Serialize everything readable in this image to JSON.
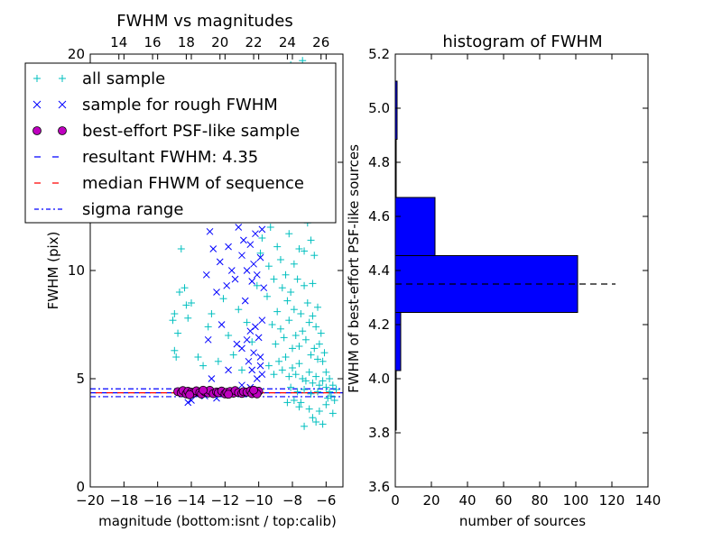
{
  "chart_data": [
    {
      "type": "scatter",
      "title": "FWHM vs magnitudes",
      "xlabel": "magnitude (bottom:isnt / top:calib)",
      "ylabel": "FWHM (pix)",
      "xlim": [
        -20,
        -5
      ],
      "ylim": [
        0,
        20
      ],
      "xticks": [
        -20,
        -18,
        -16,
        -14,
        -12,
        -10,
        -8,
        -6
      ],
      "xtick_labels": [
        "−20",
        "−18",
        "−16",
        "−14",
        "−12",
        "−10",
        "−8",
        "−6"
      ],
      "yticks": [
        0,
        5,
        10,
        15,
        20
      ],
      "ytick_labels": [
        "0",
        "5",
        "10",
        "15",
        "20"
      ],
      "top_axis": {
        "ticks": [
          -20.3,
          -18.3,
          -16.3,
          -14.3,
          -12.3,
          -10.3,
          -8.3,
          -6.3
        ],
        "labels": [
          "14",
          "16",
          "18",
          "20",
          "22",
          "24",
          "26"
        ],
        "label_positions": [
          -18.3,
          -16.3,
          -14.3,
          -12.3,
          -10.3,
          -8.3,
          -6.3
        ]
      },
      "legend_position": "top-left",
      "legend": [
        {
          "label": "all sample",
          "marker": "+",
          "color": "#00bfbf"
        },
        {
          "label": "sample for rough FWHM",
          "marker": "x",
          "color": "#0000ff"
        },
        {
          "label": "best-effort PSF-like sample",
          "marker": "o",
          "color": "#bf00bf"
        },
        {
          "label": "resultant FWHM: 4.35",
          "marker": "dashed",
          "color": "#0000ff"
        },
        {
          "label": "median FHWM of sequence",
          "marker": "dashed",
          "color": "#ff0000"
        },
        {
          "label": "sigma range",
          "marker": "dashdot",
          "color": "#0000ff"
        }
      ],
      "series": [
        {
          "name": "all sample",
          "marker": "+",
          "color": "#00bfbf",
          "points": [
            [
              -15.0,
              8.0
            ],
            [
              -15.1,
              7.7
            ],
            [
              -15.0,
              6.3
            ],
            [
              -14.9,
              6.0
            ],
            [
              -14.8,
              7.1
            ],
            [
              -14.7,
              9.0
            ],
            [
              -14.6,
              11.0
            ],
            [
              -14.4,
              9.2
            ],
            [
              -14.3,
              8.4
            ],
            [
              -14.2,
              7.8
            ],
            [
              -14.0,
              8.5
            ],
            [
              -13.6,
              6.0
            ],
            [
              -13.3,
              5.6
            ],
            [
              -13.0,
              7.4
            ],
            [
              -12.8,
              8.0
            ],
            [
              -12.4,
              5.8
            ],
            [
              -12.1,
              8.7
            ],
            [
              -11.8,
              7.0
            ],
            [
              -11.5,
              6.1
            ],
            [
              -11.2,
              8.2
            ],
            [
              -11.0,
              5.4
            ],
            [
              -10.7,
              7.6
            ],
            [
              -10.4,
              6.7
            ],
            [
              -10.1,
              9.3
            ],
            [
              -9.9,
              10.8
            ],
            [
              -9.8,
              11.5
            ],
            [
              -9.7,
              12.6
            ],
            [
              -9.6,
              13.5
            ],
            [
              -9.5,
              14.8
            ],
            [
              -9.4,
              10.2
            ],
            [
              -9.3,
              12.0
            ],
            [
              -9.2,
              15.5
            ],
            [
              -9.1,
              9.6
            ],
            [
              -9.0,
              13.2
            ],
            [
              -8.9,
              11.1
            ],
            [
              -8.8,
              16.4
            ],
            [
              -8.7,
              10.5
            ],
            [
              -8.6,
              12.9
            ],
            [
              -8.5,
              17.8
            ],
            [
              -8.4,
              9.8
            ],
            [
              -8.3,
              14.1
            ],
            [
              -8.2,
              11.7
            ],
            [
              -8.1,
              19.5
            ],
            [
              -8.0,
              13.0
            ],
            [
              -7.9,
              10.3
            ],
            [
              -7.8,
              15.9
            ],
            [
              -7.7,
              12.4
            ],
            [
              -7.6,
              11.0
            ],
            [
              -7.5,
              14.6
            ],
            [
              -7.4,
              19.7
            ],
            [
              -7.3,
              10.9
            ],
            [
              -7.2,
              13.8
            ],
            [
              -7.1,
              12.2
            ],
            [
              -7.0,
              16.8
            ],
            [
              -6.9,
              11.4
            ],
            [
              -6.8,
              9.4
            ],
            [
              -6.7,
              10.7
            ],
            [
              -6.5,
              8.3
            ],
            [
              -6.3,
              7.1
            ],
            [
              -6.1,
              6.2
            ],
            [
              -9.5,
              8.8
            ],
            [
              -9.2,
              7.5
            ],
            [
              -9.0,
              6.6
            ],
            [
              -8.9,
              8.1
            ],
            [
              -8.7,
              7.3
            ],
            [
              -8.6,
              9.2
            ],
            [
              -8.5,
              6.9
            ],
            [
              -8.3,
              8.6
            ],
            [
              -8.2,
              7.7
            ],
            [
              -8.1,
              9.0
            ],
            [
              -8.0,
              6.4
            ],
            [
              -7.9,
              8.2
            ],
            [
              -7.8,
              7.0
            ],
            [
              -7.7,
              9.6
            ],
            [
              -7.6,
              6.5
            ],
            [
              -7.5,
              8.0
            ],
            [
              -7.4,
              7.2
            ],
            [
              -7.3,
              9.3
            ],
            [
              -7.2,
              6.8
            ],
            [
              -7.1,
              8.5
            ],
            [
              -7.0,
              7.6
            ],
            [
              -6.9,
              6.1
            ],
            [
              -6.8,
              7.9
            ],
            [
              -6.7,
              6.4
            ],
            [
              -6.6,
              7.4
            ],
            [
              -6.5,
              5.9
            ],
            [
              -6.4,
              6.6
            ],
            [
              -6.2,
              5.8
            ],
            [
              -6.0,
              5.3
            ],
            [
              -5.8,
              5.0
            ],
            [
              -9.4,
              5.6
            ],
            [
              -9.1,
              5.2
            ],
            [
              -8.8,
              5.8
            ],
            [
              -8.6,
              5.4
            ],
            [
              -8.4,
              6.0
            ],
            [
              -8.2,
              5.1
            ],
            [
              -8.0,
              5.5
            ],
            [
              -7.8,
              5.2
            ],
            [
              -7.6,
              5.7
            ],
            [
              -7.4,
              5.0
            ],
            [
              -7.2,
              4.9
            ],
            [
              -7.0,
              5.3
            ],
            [
              -6.8,
              4.8
            ],
            [
              -6.6,
              5.1
            ],
            [
              -6.4,
              4.7
            ],
            [
              -6.2,
              4.9
            ],
            [
              -6.0,
              4.6
            ],
            [
              -5.8,
              4.4
            ],
            [
              -5.6,
              4.7
            ],
            [
              -5.4,
              4.5
            ],
            [
              -8.1,
              4.6
            ],
            [
              -7.7,
              4.4
            ],
            [
              -7.3,
              4.5
            ],
            [
              -6.9,
              4.3
            ],
            [
              -6.5,
              4.4
            ],
            [
              -7.5,
              3.9
            ],
            [
              -7.0,
              3.6
            ],
            [
              -6.8,
              3.2
            ],
            [
              -6.4,
              3.5
            ],
            [
              -6.2,
              2.9
            ],
            [
              -7.3,
              2.8
            ],
            [
              -6.0,
              3.8
            ],
            [
              -5.9,
              4.1
            ],
            [
              -5.7,
              4.2
            ],
            [
              -5.5,
              4.0
            ],
            [
              -8.3,
              3.9
            ],
            [
              -7.9,
              4.0
            ],
            [
              -7.6,
              3.7
            ],
            [
              -6.6,
              3.0
            ],
            [
              -5.6,
              3.4
            ]
          ]
        },
        {
          "name": "sample for rough FWHM",
          "marker": "x",
          "color": "#0000ff",
          "points": [
            [
              -13.0,
              13.2
            ],
            [
              -12.9,
              11.8
            ],
            [
              -12.7,
              11.0
            ],
            [
              -13.1,
              9.8
            ],
            [
              -13.0,
              6.8
            ],
            [
              -12.5,
              9.0
            ],
            [
              -12.3,
              10.4
            ],
            [
              -11.9,
              9.3
            ],
            [
              -11.8,
              11.1
            ],
            [
              -11.6,
              10.0
            ],
            [
              -11.4,
              9.6
            ],
            [
              -11.2,
              12.0
            ],
            [
              -11.0,
              10.7
            ],
            [
              -10.9,
              11.4
            ],
            [
              -10.8,
              8.6
            ],
            [
              -10.7,
              10.0
            ],
            [
              -10.6,
              12.8
            ],
            [
              -10.5,
              11.2
            ],
            [
              -10.4,
              9.5
            ],
            [
              -10.3,
              10.3
            ],
            [
              -10.2,
              11.7
            ],
            [
              -10.1,
              9.8
            ],
            [
              -10.0,
              12.4
            ],
            [
              -9.9,
              10.6
            ],
            [
              -9.8,
              11.9
            ],
            [
              -9.7,
              9.2
            ],
            [
              -10.4,
              13.9
            ],
            [
              -10.2,
              14.4
            ],
            [
              -10.0,
              15.3
            ],
            [
              -10.3,
              16.0
            ],
            [
              -10.6,
              13.6
            ],
            [
              -10.1,
              17.2
            ],
            [
              -9.9,
              15.9
            ],
            [
              -10.5,
              18.3
            ],
            [
              -10.4,
              17.0
            ],
            [
              -12.2,
              7.5
            ],
            [
              -11.3,
              6.6
            ],
            [
              -11.0,
              6.4
            ],
            [
              -10.7,
              6.8
            ],
            [
              -10.5,
              7.2
            ],
            [
              -10.3,
              6.2
            ],
            [
              -10.2,
              7.4
            ],
            [
              -10.0,
              6.9
            ],
            [
              -9.9,
              6.0
            ],
            [
              -9.8,
              7.7
            ],
            [
              -10.6,
              5.8
            ],
            [
              -10.4,
              5.4
            ],
            [
              -10.1,
              5.0
            ],
            [
              -9.9,
              5.6
            ],
            [
              -9.8,
              5.2
            ],
            [
              -11.8,
              5.4
            ],
            [
              -12.8,
              5.0
            ],
            [
              -14.2,
              3.9
            ],
            [
              -13.2,
              4.2
            ],
            [
              -12.5,
              4.1
            ],
            [
              -12.0,
              4.3
            ],
            [
              -11.0,
              4.7
            ],
            [
              -10.5,
              4.6
            ],
            [
              -13.8,
              4.3
            ],
            [
              -14.0,
              4.0
            ]
          ]
        },
        {
          "name": "best-effort PSF-like sample",
          "marker": "o",
          "color": "#bf00bf",
          "points": [
            [
              -14.8,
              4.4
            ],
            [
              -14.6,
              4.35
            ],
            [
              -14.5,
              4.45
            ],
            [
              -14.3,
              4.3
            ],
            [
              -14.2,
              4.42
            ],
            [
              -14.0,
              4.38
            ],
            [
              -13.9,
              4.33
            ],
            [
              -13.7,
              4.44
            ],
            [
              -13.5,
              4.36
            ],
            [
              -13.4,
              4.29
            ],
            [
              -13.2,
              4.4
            ],
            [
              -13.0,
              4.34
            ],
            [
              -12.9,
              4.46
            ],
            [
              -12.7,
              4.31
            ],
            [
              -12.5,
              4.39
            ],
            [
              -12.4,
              4.35
            ],
            [
              -12.2,
              4.43
            ],
            [
              -12.0,
              4.3
            ],
            [
              -11.9,
              4.37
            ],
            [
              -11.7,
              4.41
            ],
            [
              -11.5,
              4.33
            ],
            [
              -11.4,
              4.45
            ],
            [
              -11.2,
              4.36
            ],
            [
              -11.0,
              4.32
            ],
            [
              -10.9,
              4.4
            ],
            [
              -10.7,
              4.38
            ],
            [
              -10.5,
              4.44
            ],
            [
              -10.4,
              4.31
            ],
            [
              -10.2,
              4.37
            ],
            [
              -10.0,
              4.42
            ],
            [
              -10.1,
              4.3
            ],
            [
              -10.3,
              4.47
            ],
            [
              -11.8,
              4.28
            ],
            [
              -13.3,
              4.47
            ],
            [
              -14.1,
              4.26
            ]
          ]
        }
      ],
      "hlines": [
        {
          "label": "resultant FWHM: 4.35",
          "y": 4.35,
          "color": "#0000ff",
          "style": "dashed"
        },
        {
          "label": "median FHWM of sequence",
          "y": 4.35,
          "color": "#ff0000",
          "style": "dashed"
        },
        {
          "label": "sigma range",
          "y": 4.17,
          "color": "#0000ff",
          "style": "dashdot"
        },
        {
          "label": "sigma range",
          "y": 4.53,
          "color": "#0000ff",
          "style": "dashdot"
        }
      ]
    },
    {
      "type": "bar",
      "orientation": "horizontal",
      "title": "histogram of FWHM",
      "xlabel": "number of sources",
      "ylabel": "FWHM of best-effort PSF-like sources",
      "xlim": [
        0,
        140
      ],
      "ylim": [
        3.6,
        5.2
      ],
      "xticks": [
        0,
        20,
        40,
        60,
        80,
        100,
        120,
        140
      ],
      "yticks": [
        3.6,
        3.8,
        4.0,
        4.2,
        4.4,
        4.6,
        4.8,
        5.0,
        5.2
      ],
      "ytick_labels": [
        "3.6",
        "3.8",
        "4.0",
        "4.2",
        "4.4",
        "4.6",
        "4.8",
        "5.0",
        "5.2"
      ],
      "bar_color": "#0000ff",
      "bins": [
        {
          "from": 3.81,
          "to": 4.03,
          "count": 0
        },
        {
          "from": 4.03,
          "to": 4.245,
          "count": 3
        },
        {
          "from": 4.245,
          "to": 4.455,
          "count": 101
        },
        {
          "from": 4.455,
          "to": 4.67,
          "count": 22
        },
        {
          "from": 4.67,
          "to": 4.885,
          "count": 0
        },
        {
          "from": 4.885,
          "to": 5.1,
          "count": 1
        }
      ],
      "hline": {
        "y": 4.35,
        "xmax": 122,
        "color": "#000000",
        "style": "dashed"
      }
    }
  ]
}
